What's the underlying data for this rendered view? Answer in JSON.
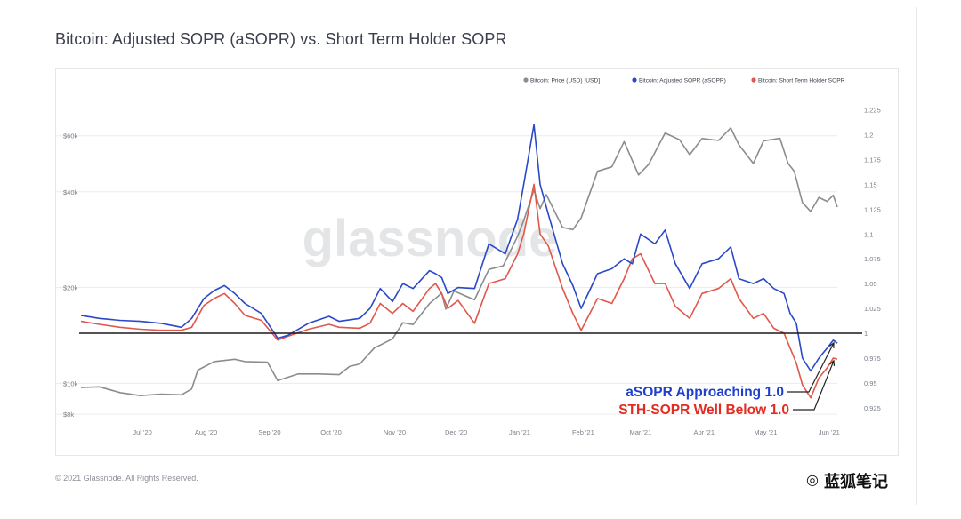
{
  "title": "Bitcoin: Adjusted SOPR (aSOPR) vs. Short Term Holder SOPR",
  "copyright": "© 2021 Glassnode. All Rights Reserved.",
  "watermark": "glassnode",
  "brand": "蓝狐笔记",
  "brand_icon": "wechat-icon",
  "footer_caption": "",
  "colors": {
    "price": "#8c8c8c",
    "asopr": "#2a48c8",
    "sth_sopr": "#e1574c",
    "reference_line": "#1a1a1a",
    "annotation_asopr": "#1f3fcf",
    "annotation_sth": "#e32b21"
  },
  "chart_data": {
    "type": "line",
    "title": "Bitcoin: Adjusted SOPR (aSOPR) vs. Short Term Holder SOPR",
    "legend_position": "top-right",
    "grid": true,
    "x_type": "date",
    "x_range": [
      "2020-06-01",
      "2021-06-05"
    ],
    "x_ticks": [
      "Jul '20",
      "Aug '20",
      "Sep '20",
      "Oct '20",
      "Nov '20",
      "Dec '20",
      "Jan '21",
      "Feb '21",
      "Mar '21",
      "Apr '21",
      "May '21",
      "Jun '21"
    ],
    "y_left": {
      "scale": "log",
      "unit": "USD",
      "range": [
        7800,
        75000
      ],
      "ticks": [
        {
          "value": 8000,
          "label": "$8k"
        },
        {
          "value": 10000,
          "label": "$10k"
        },
        {
          "value": 20000,
          "label": "$20k"
        },
        {
          "value": 40000,
          "label": "$40k"
        },
        {
          "value": 60000,
          "label": "$60k"
        }
      ]
    },
    "y_right": {
      "scale": "linear",
      "range": [
        0.915,
        1.23
      ],
      "ticks": [
        0.925,
        0.95,
        0.975,
        1,
        1.025,
        1.05,
        1.075,
        1.1,
        1.125,
        1.15,
        1.175,
        1.2,
        1.225
      ]
    },
    "reference_line": {
      "axis": "right",
      "value": 1
    },
    "series": [
      {
        "name": "Bitcoin: Price (USD) [USD]",
        "axis": "left",
        "color": "#8c8c8c",
        "points": [
          [
            "2020-06-01",
            9700
          ],
          [
            "2020-06-10",
            9750
          ],
          [
            "2020-06-20",
            9350
          ],
          [
            "2020-06-30",
            9150
          ],
          [
            "2020-07-10",
            9250
          ],
          [
            "2020-07-20",
            9200
          ],
          [
            "2020-07-25",
            9600
          ],
          [
            "2020-07-28",
            11000
          ],
          [
            "2020-08-05",
            11700
          ],
          [
            "2020-08-15",
            11900
          ],
          [
            "2020-08-20",
            11700
          ],
          [
            "2020-08-31",
            11650
          ],
          [
            "2020-09-05",
            10200
          ],
          [
            "2020-09-15",
            10700
          ],
          [
            "2020-09-25",
            10700
          ],
          [
            "2020-10-05",
            10650
          ],
          [
            "2020-10-10",
            11300
          ],
          [
            "2020-10-15",
            11500
          ],
          [
            "2020-10-22",
            12900
          ],
          [
            "2020-10-31",
            13800
          ],
          [
            "2020-11-05",
            15500
          ],
          [
            "2020-11-10",
            15300
          ],
          [
            "2020-11-18",
            17800
          ],
          [
            "2020-11-24",
            19200
          ],
          [
            "2020-11-26",
            17100
          ],
          [
            "2020-11-30",
            19500
          ],
          [
            "2020-12-10",
            18300
          ],
          [
            "2020-12-17",
            22800
          ],
          [
            "2020-12-24",
            23400
          ],
          [
            "2020-12-31",
            29000
          ],
          [
            "2021-01-03",
            32500
          ],
          [
            "2021-01-08",
            40500
          ],
          [
            "2021-01-11",
            35400
          ],
          [
            "2021-01-14",
            39200
          ],
          [
            "2021-01-22",
            30900
          ],
          [
            "2021-01-27",
            30400
          ],
          [
            "2021-01-31",
            33100
          ],
          [
            "2021-02-08",
            46400
          ],
          [
            "2021-02-15",
            47900
          ],
          [
            "2021-02-21",
            57500
          ],
          [
            "2021-02-28",
            45200
          ],
          [
            "2021-03-05",
            48800
          ],
          [
            "2021-03-13",
            61200
          ],
          [
            "2021-03-20",
            58300
          ],
          [
            "2021-03-25",
            52300
          ],
          [
            "2021-03-31",
            58800
          ],
          [
            "2021-04-08",
            58000
          ],
          [
            "2021-04-14",
            63500
          ],
          [
            "2021-04-18",
            56200
          ],
          [
            "2021-04-25",
            49100
          ],
          [
            "2021-04-30",
            57800
          ],
          [
            "2021-05-08",
            58900
          ],
          [
            "2021-05-12",
            49100
          ],
          [
            "2021-05-15",
            46400
          ],
          [
            "2021-05-19",
            37000
          ],
          [
            "2021-05-23",
            34700
          ],
          [
            "2021-05-27",
            38400
          ],
          [
            "2021-05-31",
            37300
          ],
          [
            "2021-06-03",
            39000
          ],
          [
            "2021-06-05",
            35800
          ]
        ]
      },
      {
        "name": "Bitcoin: Adjusted SOPR (aSOPR)",
        "axis": "right",
        "color": "#2a48c8",
        "points": [
          [
            "2020-06-01",
            1.018
          ],
          [
            "2020-06-10",
            1.015
          ],
          [
            "2020-06-20",
            1.013
          ],
          [
            "2020-06-30",
            1.012
          ],
          [
            "2020-07-10",
            1.01
          ],
          [
            "2020-07-20",
            1.006
          ],
          [
            "2020-07-25",
            1.015
          ],
          [
            "2020-07-31",
            1.035
          ],
          [
            "2020-08-05",
            1.043
          ],
          [
            "2020-08-10",
            1.048
          ],
          [
            "2020-08-15",
            1.04
          ],
          [
            "2020-08-20",
            1.03
          ],
          [
            "2020-08-28",
            1.02
          ],
          [
            "2020-09-05",
            0.995
          ],
          [
            "2020-09-10",
            0.998
          ],
          [
            "2020-09-20",
            1.01
          ],
          [
            "2020-09-30",
            1.017
          ],
          [
            "2020-10-05",
            1.012
          ],
          [
            "2020-10-15",
            1.015
          ],
          [
            "2020-10-20",
            1.025
          ],
          [
            "2020-10-25",
            1.045
          ],
          [
            "2020-10-31",
            1.032
          ],
          [
            "2020-11-05",
            1.05
          ],
          [
            "2020-11-10",
            1.045
          ],
          [
            "2020-11-18",
            1.063
          ],
          [
            "2020-11-21",
            1.06
          ],
          [
            "2020-11-24",
            1.056
          ],
          [
            "2020-11-27",
            1.04
          ],
          [
            "2020-12-02",
            1.046
          ],
          [
            "2020-12-10",
            1.045
          ],
          [
            "2020-12-17",
            1.09
          ],
          [
            "2020-12-25",
            1.08
          ],
          [
            "2020-12-31",
            1.115
          ],
          [
            "2021-01-03",
            1.15
          ],
          [
            "2021-01-08",
            1.21
          ],
          [
            "2021-01-11",
            1.15
          ],
          [
            "2021-01-15",
            1.12
          ],
          [
            "2021-01-22",
            1.07
          ],
          [
            "2021-01-27",
            1.048
          ],
          [
            "2021-01-31",
            1.025
          ],
          [
            "2021-02-08",
            1.06
          ],
          [
            "2021-02-15",
            1.065
          ],
          [
            "2021-02-21",
            1.075
          ],
          [
            "2021-02-25",
            1.07
          ],
          [
            "2021-03-01",
            1.1
          ],
          [
            "2021-03-08",
            1.09
          ],
          [
            "2021-03-13",
            1.104
          ],
          [
            "2021-03-18",
            1.07
          ],
          [
            "2021-03-25",
            1.045
          ],
          [
            "2021-03-31",
            1.07
          ],
          [
            "2021-04-08",
            1.075
          ],
          [
            "2021-04-14",
            1.087
          ],
          [
            "2021-04-18",
            1.055
          ],
          [
            "2021-04-25",
            1.05
          ],
          [
            "2021-04-30",
            1.055
          ],
          [
            "2021-05-05",
            1.045
          ],
          [
            "2021-05-10",
            1.04
          ],
          [
            "2021-05-13",
            1.02
          ],
          [
            "2021-05-16",
            1.01
          ],
          [
            "2021-05-19",
            0.975
          ],
          [
            "2021-05-23",
            0.962
          ],
          [
            "2021-05-27",
            0.975
          ],
          [
            "2021-05-31",
            0.985
          ],
          [
            "2021-06-03",
            0.993
          ],
          [
            "2021-06-05",
            0.99
          ]
        ]
      },
      {
        "name": "Bitcoin: Short Term Holder SOPR",
        "axis": "right",
        "color": "#e1574c",
        "points": [
          [
            "2020-06-01",
            1.012
          ],
          [
            "2020-06-10",
            1.009
          ],
          [
            "2020-06-20",
            1.006
          ],
          [
            "2020-06-30",
            1.004
          ],
          [
            "2020-07-10",
            1.003
          ],
          [
            "2020-07-20",
            1.003
          ],
          [
            "2020-07-25",
            1.006
          ],
          [
            "2020-07-31",
            1.028
          ],
          [
            "2020-08-05",
            1.035
          ],
          [
            "2020-08-10",
            1.04
          ],
          [
            "2020-08-15",
            1.03
          ],
          [
            "2020-08-20",
            1.018
          ],
          [
            "2020-08-28",
            1.013
          ],
          [
            "2020-09-05",
            0.993
          ],
          [
            "2020-09-10",
            0.997
          ],
          [
            "2020-09-20",
            1.004
          ],
          [
            "2020-09-30",
            1.009
          ],
          [
            "2020-10-05",
            1.006
          ],
          [
            "2020-10-15",
            1.005
          ],
          [
            "2020-10-20",
            1.01
          ],
          [
            "2020-10-25",
            1.03
          ],
          [
            "2020-10-31",
            1.02
          ],
          [
            "2020-11-05",
            1.03
          ],
          [
            "2020-11-10",
            1.022
          ],
          [
            "2020-11-18",
            1.045
          ],
          [
            "2020-11-21",
            1.05
          ],
          [
            "2020-11-24",
            1.04
          ],
          [
            "2020-11-27",
            1.025
          ],
          [
            "2020-12-02",
            1.033
          ],
          [
            "2020-12-10",
            1.01
          ],
          [
            "2020-12-17",
            1.05
          ],
          [
            "2020-12-25",
            1.055
          ],
          [
            "2020-12-31",
            1.08
          ],
          [
            "2021-01-03",
            1.1
          ],
          [
            "2021-01-08",
            1.15
          ],
          [
            "2021-01-11",
            1.1
          ],
          [
            "2021-01-15",
            1.088
          ],
          [
            "2021-01-22",
            1.045
          ],
          [
            "2021-01-27",
            1.02
          ],
          [
            "2021-01-31",
            1.003
          ],
          [
            "2021-02-08",
            1.035
          ],
          [
            "2021-02-15",
            1.03
          ],
          [
            "2021-02-21",
            1.055
          ],
          [
            "2021-02-25",
            1.075
          ],
          [
            "2021-03-01",
            1.08
          ],
          [
            "2021-03-08",
            1.05
          ],
          [
            "2021-03-13",
            1.05
          ],
          [
            "2021-03-18",
            1.027
          ],
          [
            "2021-03-25",
            1.015
          ],
          [
            "2021-03-31",
            1.04
          ],
          [
            "2021-04-08",
            1.045
          ],
          [
            "2021-04-14",
            1.055
          ],
          [
            "2021-04-18",
            1.035
          ],
          [
            "2021-04-25",
            1.015
          ],
          [
            "2021-04-30",
            1.02
          ],
          [
            "2021-05-05",
            1.005
          ],
          [
            "2021-05-10",
            1.0
          ],
          [
            "2021-05-13",
            0.985
          ],
          [
            "2021-05-16",
            0.97
          ],
          [
            "2021-05-19",
            0.948
          ],
          [
            "2021-05-23",
            0.935
          ],
          [
            "2021-05-27",
            0.955
          ],
          [
            "2021-05-31",
            0.965
          ],
          [
            "2021-06-03",
            0.975
          ],
          [
            "2021-06-05",
            0.974
          ]
        ]
      }
    ],
    "annotations": [
      {
        "text": "aSOPR Approaching 1.0",
        "color": "#1f3fcf",
        "target": [
          "2021-06-05",
          0.993
        ]
      },
      {
        "text": "STH-SOPR Well Below 1.0",
        "color": "#e32b21",
        "target": [
          "2021-06-05",
          0.975
        ]
      }
    ]
  }
}
